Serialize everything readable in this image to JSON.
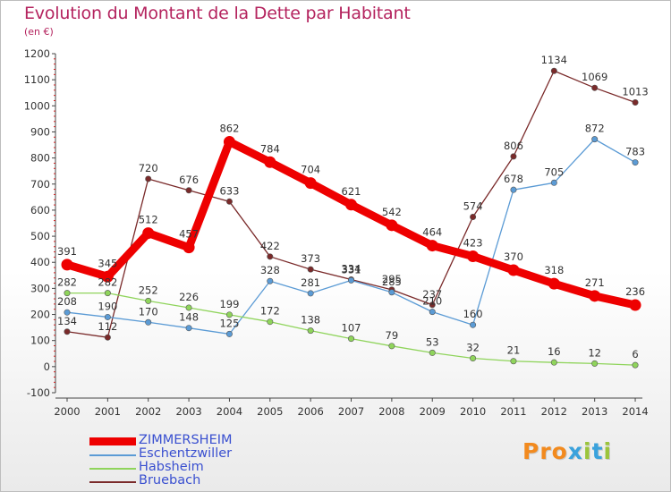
{
  "title": "Evolution du Montant de la Dette par Habitant",
  "subtitle": "(en €)",
  "logo": {
    "text": "Proxiti",
    "letter_colors": [
      "#f28a1e",
      "#f28a1e",
      "#f28a1e",
      "#3aa2dc",
      "#9bc43b",
      "#3aa2dc",
      "#9bc43b"
    ]
  },
  "chart_data": {
    "type": "line",
    "title": "Evolution du Montant de la Dette par Habitant",
    "ylabel": "(en €)",
    "xlabel": "",
    "x": [
      "2000",
      "2001",
      "2002",
      "2003",
      "2004",
      "2005",
      "2006",
      "2007",
      "2008",
      "2009",
      "2010",
      "2011",
      "2012",
      "2013",
      "2014"
    ],
    "ylim": [
      -100,
      1200
    ],
    "yticks": [
      -100,
      0,
      100,
      200,
      300,
      400,
      500,
      600,
      700,
      800,
      900,
      1000,
      1100,
      1200
    ],
    "grid": false,
    "legend_position": "bottom-left",
    "series": [
      {
        "name": "ZIMMERSHEIM",
        "color": "#ee0000",
        "values": [
          391,
          345,
          512,
          457,
          862,
          784,
          704,
          621,
          542,
          464,
          423,
          370,
          318,
          271,
          236
        ],
        "labels": [
          "391",
          "345",
          "512",
          "457",
          "862",
          "784",
          "704",
          "621",
          "542",
          "464",
          "423",
          "370",
          "318",
          "271",
          "236"
        ]
      },
      {
        "name": "Eschentzwiller",
        "color": "#5b9bd5",
        "values": [
          208,
          190,
          170,
          148,
          125,
          328,
          281,
          331,
          285,
          210,
          160,
          678,
          705,
          872,
          783
        ],
        "labels": [
          "208",
          "190",
          "170",
          "148",
          "125",
          "328",
          "281",
          "331",
          "285",
          "210",
          "160",
          "678",
          "705",
          "872",
          "783"
        ]
      },
      {
        "name": "Habsheim",
        "color": "#8fd45b",
        "values": [
          282,
          282,
          252,
          226,
          199,
          172,
          138,
          107,
          79,
          53,
          32,
          21,
          16,
          12,
          6
        ],
        "labels": [
          "282",
          "282",
          "252",
          "226",
          "199",
          "172",
          "138",
          "107",
          "79",
          "53",
          "32",
          "21",
          "16",
          "12",
          "6"
        ]
      },
      {
        "name": "Bruebach",
        "color": "#7a2a2a",
        "values": [
          134,
          112,
          720,
          676,
          633,
          422,
          373,
          334,
          295,
          237,
          574,
          806,
          1134,
          1069,
          1013
        ],
        "labels": [
          "134",
          "112",
          "720",
          "676",
          "633",
          "422",
          "373",
          "334",
          "295",
          "237",
          "574",
          "806",
          "1134",
          "1069",
          "1013"
        ]
      }
    ]
  }
}
